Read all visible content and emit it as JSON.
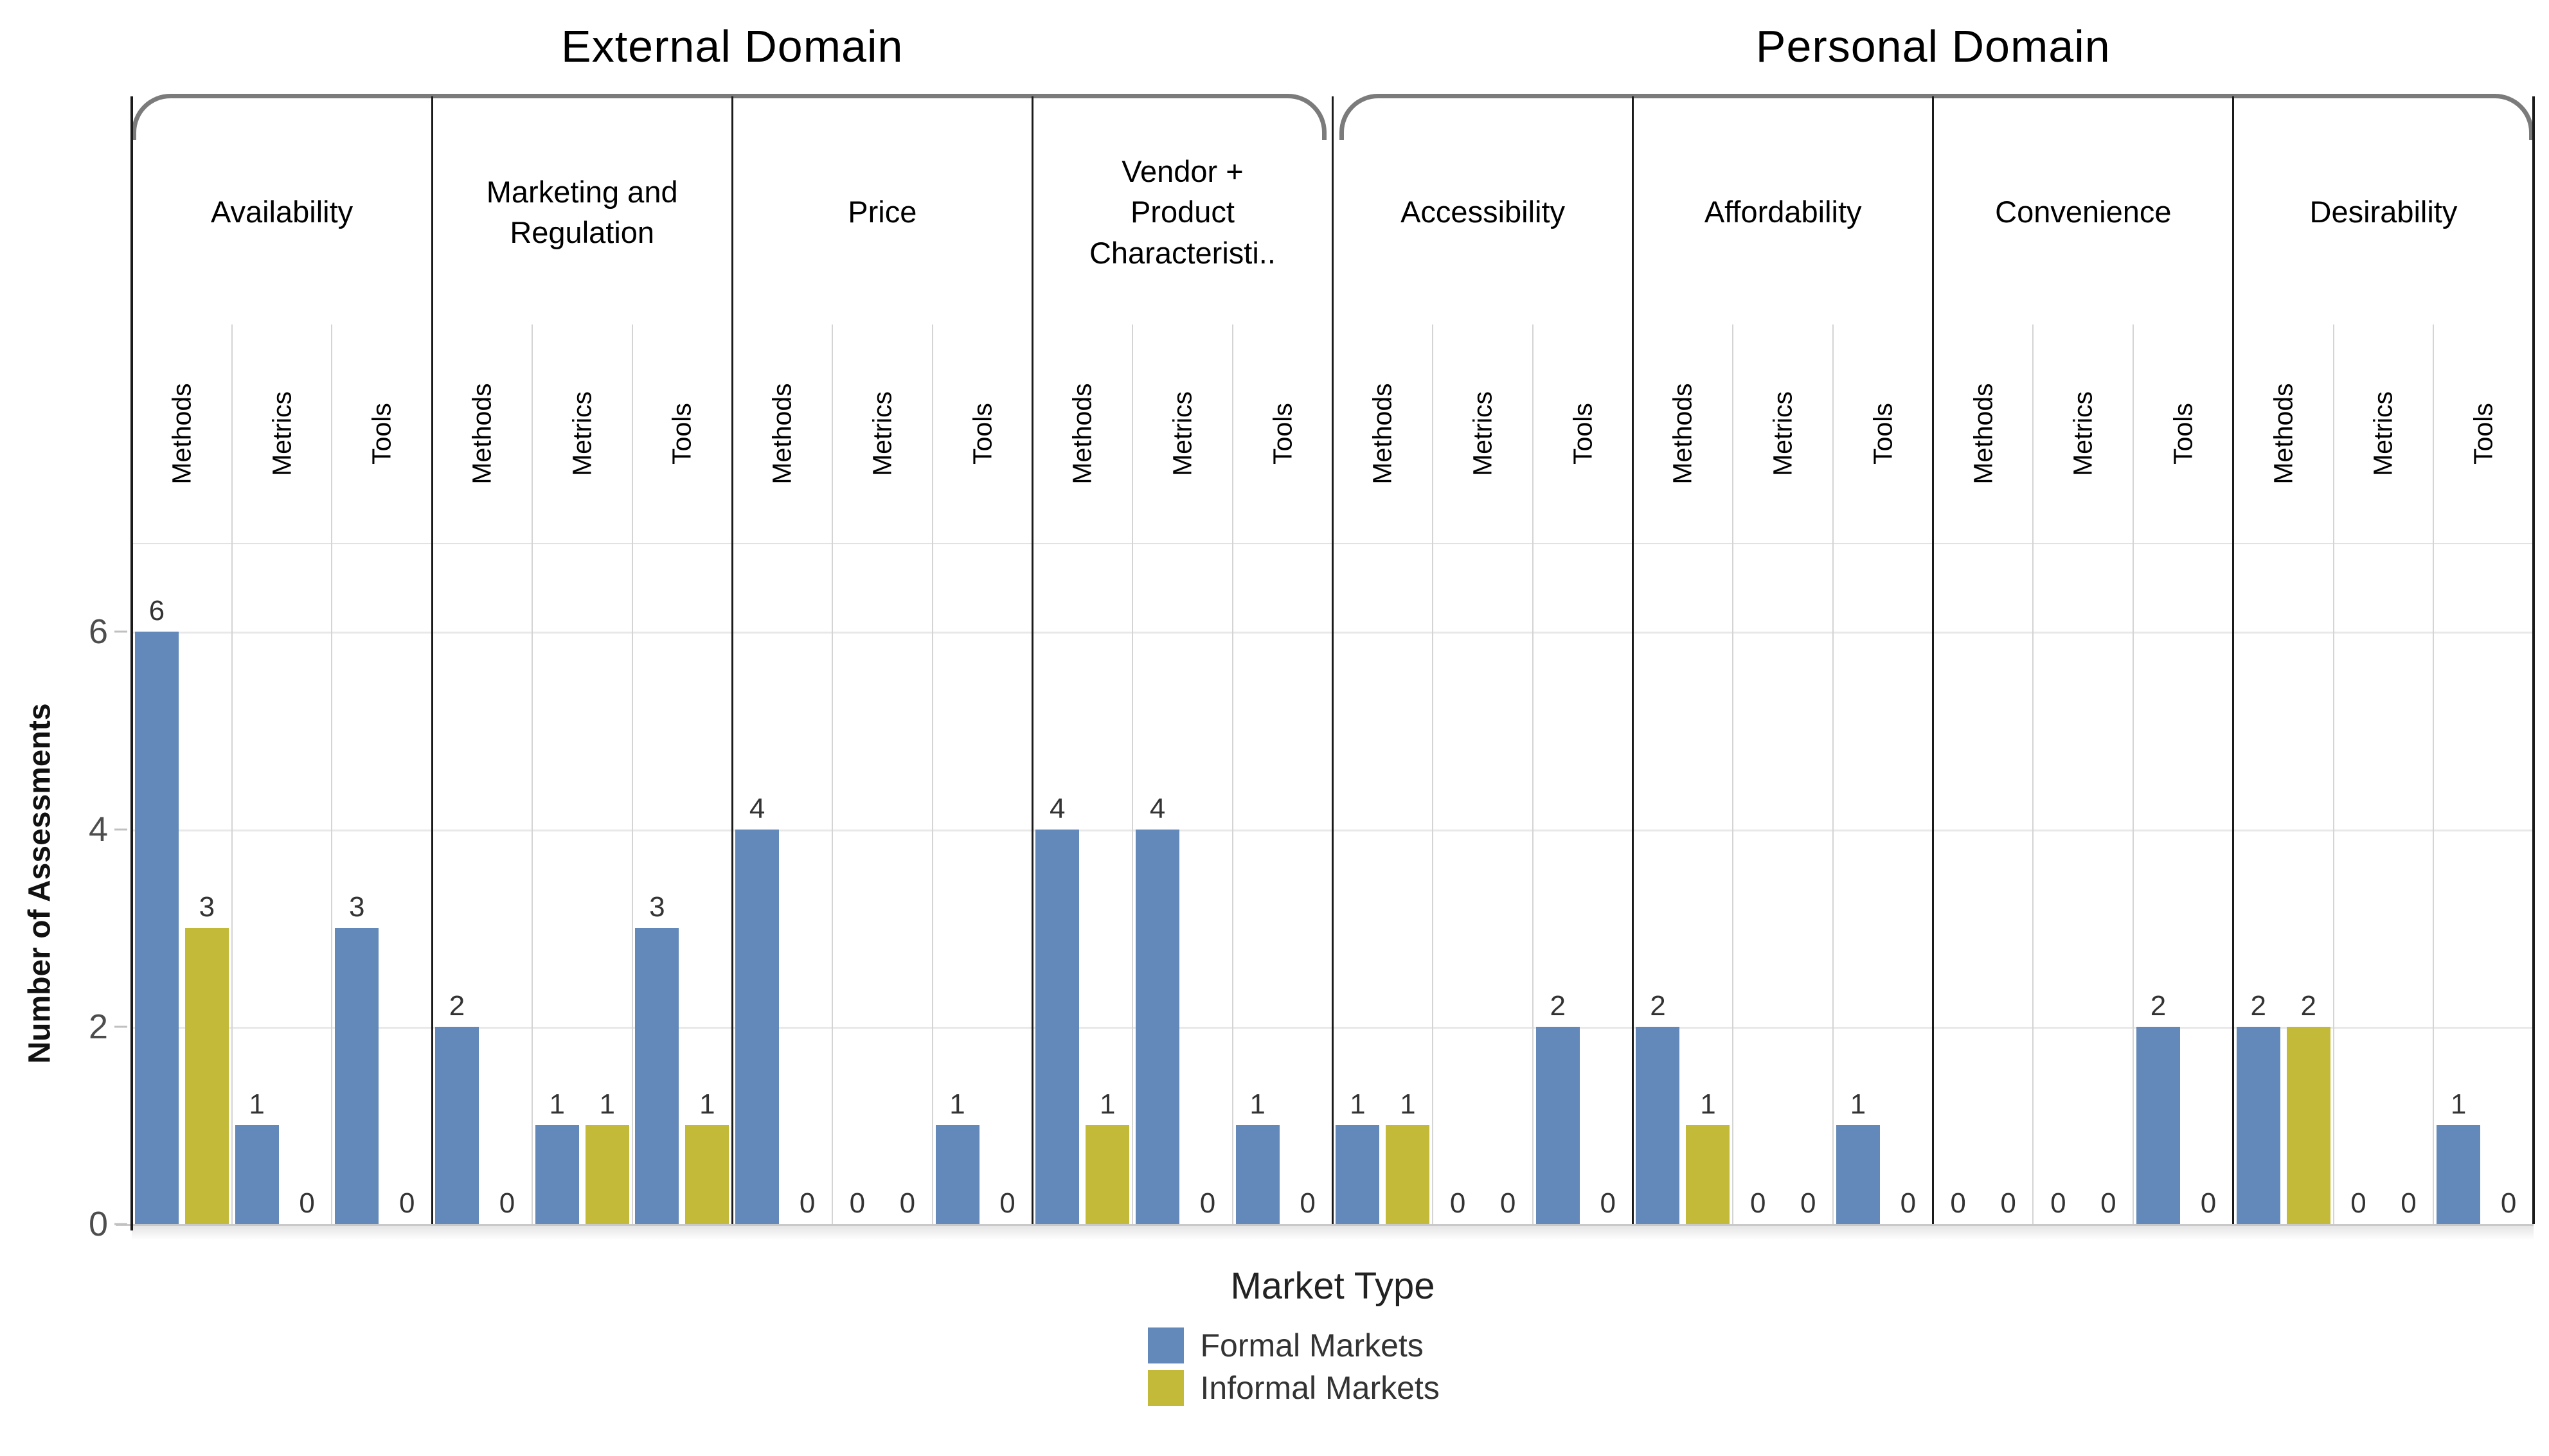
{
  "legend": {
    "title": "Market Type"
  },
  "colors": {
    "formal": "#6289b9",
    "informal": "#c3ba3a",
    "panel_border": "#1a1a1a",
    "bracket": "#7b7b7b",
    "gridline": "#e8e8e8"
  },
  "chart_data": {
    "type": "bar",
    "ylabel": "Number of Assessments",
    "ylim": [
      0,
      6.9
    ],
    "yticks": [
      0,
      2,
      4,
      6
    ],
    "grid": "horizontal light gray at 2,4,6; legend below chart, centered",
    "series": [
      {
        "name": "Formal Markets",
        "color": "#6289b9"
      },
      {
        "name": "Informal Markets",
        "color": "#c3ba3a"
      }
    ],
    "domains": [
      {
        "title": "External Domain",
        "categories": [
          {
            "label": "Availability",
            "display": "Availability",
            "groups": [
              {
                "label": "Methods",
                "values": [
                  6,
                  3
                ]
              },
              {
                "label": "Metrics",
                "values": [
                  1,
                  0
                ]
              },
              {
                "label": "Tools",
                "values": [
                  3,
                  0
                ]
              }
            ]
          },
          {
            "label": "Marketing and Regulation",
            "display": "Marketing and\nRegulation",
            "groups": [
              {
                "label": "Methods",
                "values": [
                  2,
                  0
                ]
              },
              {
                "label": "Metrics",
                "values": [
                  1,
                  1
                ]
              },
              {
                "label": "Tools",
                "values": [
                  3,
                  1
                ]
              }
            ]
          },
          {
            "label": "Price",
            "display": "Price",
            "groups": [
              {
                "label": "Methods",
                "values": [
                  4,
                  0
                ]
              },
              {
                "label": "Metrics",
                "values": [
                  0,
                  0
                ]
              },
              {
                "label": "Tools",
                "values": [
                  1,
                  0
                ]
              }
            ]
          },
          {
            "label": "Vendor + Product Characteristi..",
            "display": "Vendor +\nProduct\nCharacteristi..",
            "groups": [
              {
                "label": "Methods",
                "values": [
                  4,
                  1
                ]
              },
              {
                "label": "Metrics",
                "values": [
                  4,
                  0
                ]
              },
              {
                "label": "Tools",
                "values": [
                  1,
                  0
                ]
              }
            ]
          }
        ]
      },
      {
        "title": "Personal Domain",
        "categories": [
          {
            "label": "Accessibility",
            "display": "Accessibility",
            "groups": [
              {
                "label": "Methods",
                "values": [
                  1,
                  1
                ]
              },
              {
                "label": "Metrics",
                "values": [
                  0,
                  0
                ]
              },
              {
                "label": "Tools",
                "values": [
                  2,
                  0
                ]
              }
            ]
          },
          {
            "label": "Affordability",
            "display": "Affordability",
            "groups": [
              {
                "label": "Methods",
                "values": [
                  2,
                  1
                ]
              },
              {
                "label": "Metrics",
                "values": [
                  0,
                  0
                ]
              },
              {
                "label": "Tools",
                "values": [
                  1,
                  0
                ]
              }
            ]
          },
          {
            "label": "Convenience",
            "display": "Convenience",
            "groups": [
              {
                "label": "Methods",
                "values": [
                  0,
                  0
                ]
              },
              {
                "label": "Metrics",
                "values": [
                  0,
                  0
                ]
              },
              {
                "label": "Tools",
                "values": [
                  2,
                  0
                ]
              }
            ]
          },
          {
            "label": "Desirability",
            "display": "Desirability",
            "groups": [
              {
                "label": "Methods",
                "values": [
                  2,
                  2
                ]
              },
              {
                "label": "Metrics",
                "values": [
                  0,
                  0
                ]
              },
              {
                "label": "Tools",
                "values": [
                  1,
                  0
                ]
              }
            ]
          }
        ]
      }
    ]
  }
}
